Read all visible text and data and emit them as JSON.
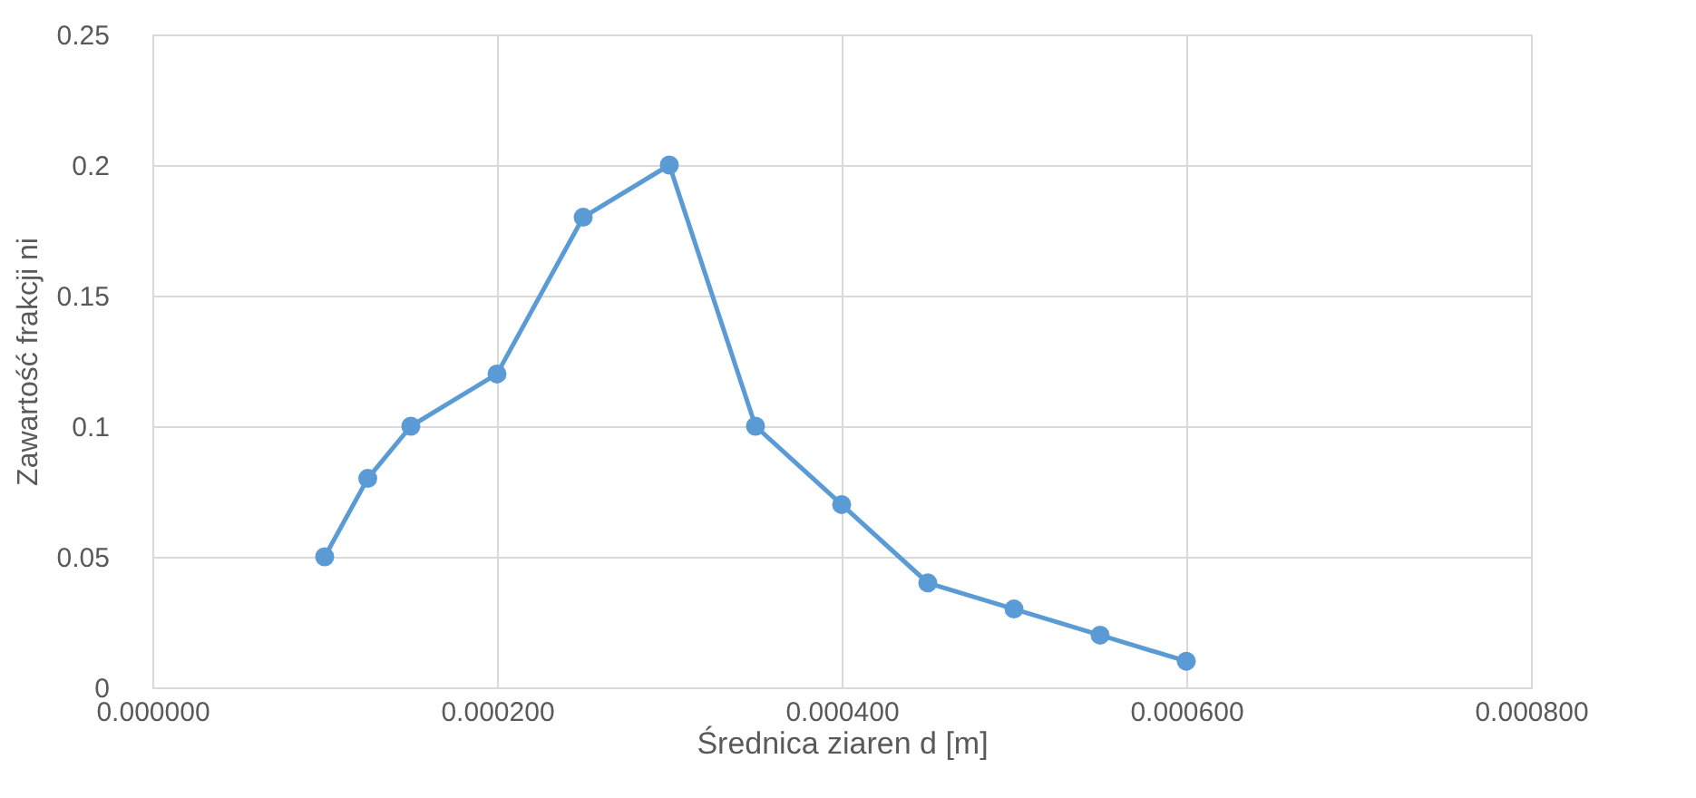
{
  "chart_data": {
    "type": "line",
    "xlabel": "Średnica ziaren d [m]",
    "ylabel": "Zawartość frakcji ni",
    "x": [
      0.0001,
      0.000125,
      0.00015,
      0.0002,
      0.00025,
      0.0003,
      0.00035,
      0.0004,
      0.00045,
      0.0005,
      0.00055,
      0.0006
    ],
    "series": [
      {
        "color": "#5b9bd5",
        "values": [
          0.05,
          0.08,
          0.1,
          0.12,
          0.18,
          0.2,
          0.1,
          0.07,
          0.04,
          0.03,
          0.02,
          0.01
        ]
      }
    ],
    "xlim": [
      0,
      0.0008
    ],
    "xticks": [
      {
        "value": 0,
        "label": "0.000000"
      },
      {
        "value": 0.0002,
        "label": "0.000200"
      },
      {
        "value": 0.0004,
        "label": "0.000400"
      },
      {
        "value": 0.0006,
        "label": "0.000600"
      },
      {
        "value": 0.0008,
        "label": "0.000800"
      }
    ],
    "ylim": [
      0,
      0.25
    ],
    "yticks": [
      0,
      0.05,
      0.1,
      0.15,
      0.2,
      0.25
    ],
    "grid": true,
    "marker": "circle",
    "line_style": "solid"
  }
}
